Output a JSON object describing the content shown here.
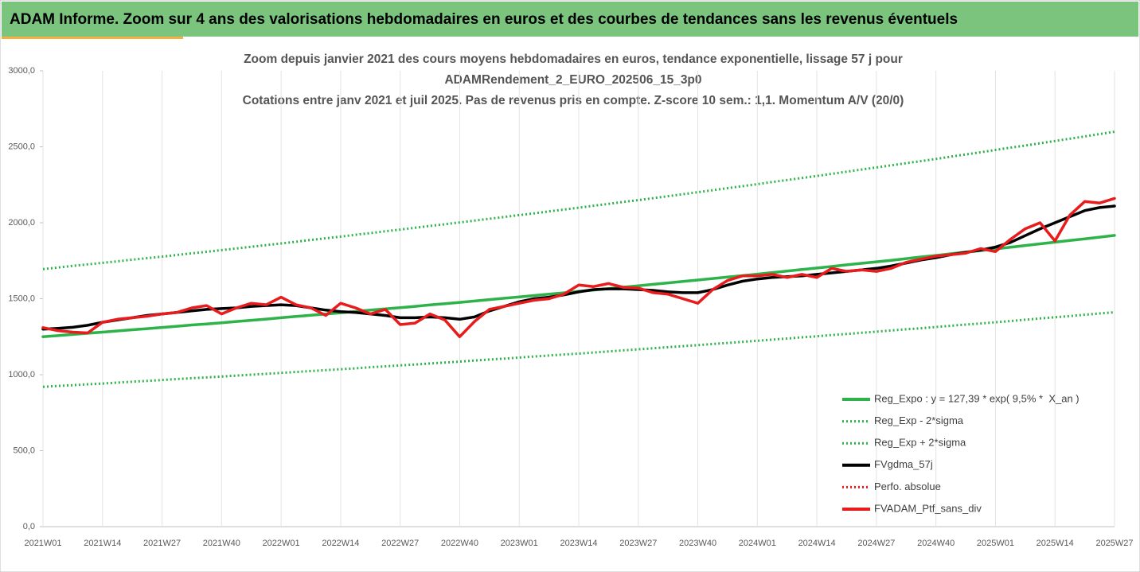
{
  "header": {
    "title": "ADAM Informe. Zoom sur 4 ans des valorisations hebdomadaires en euros et des courbes de tendances sans les revenus éventuels"
  },
  "chart_data": {
    "type": "line",
    "title": [
      "Zoom depuis janvier 2021 des cours moyens hebdomadaires  en euros, tendance exponentielle, lissage 57 j pour",
      "ADAMRendement_2_EURO_202506_15_3p0",
      "Cotations entre janv 2021 et juil 2025. Pas de revenus pris en compte. Z-score 10 sem.: 1,1. Momentum A/V (20/0)"
    ],
    "categories": [
      "2021W01",
      null,
      null,
      null,
      "2021W14",
      null,
      null,
      null,
      "2021W27",
      null,
      null,
      null,
      "2021W40",
      null,
      null,
      null,
      "2022W01",
      null,
      null,
      null,
      "2022W14",
      null,
      null,
      null,
      "2022W27",
      null,
      null,
      null,
      "2022W40",
      null,
      null,
      null,
      "2023W01",
      null,
      null,
      null,
      "2023W14",
      null,
      null,
      null,
      "2023W27",
      null,
      null,
      null,
      "2023W40",
      null,
      null,
      null,
      "2024W01",
      null,
      null,
      null,
      "2024W14",
      null,
      null,
      null,
      "2024W27",
      null,
      null,
      null,
      "2024W40",
      null,
      null,
      null,
      "2025W01",
      null,
      null,
      null,
      "2025W14",
      null,
      null,
      null,
      "2025W27"
    ],
    "ylim": [
      0,
      3000
    ],
    "yticks": [
      {
        "value": 0,
        "label": "0,0"
      },
      {
        "value": 500,
        "label": "500,0"
      },
      {
        "value": 1000,
        "label": "1000,0"
      },
      {
        "value": 1500,
        "label": "1500,0"
      },
      {
        "value": 2000,
        "label": "2000,0"
      },
      {
        "value": 2500,
        "label": "2500,0"
      },
      {
        "value": 3000,
        "label": "3000,0"
      }
    ],
    "xgrid": true,
    "legend": "lower right",
    "series": [
      {
        "name": "Reg_Expo : y = 127,39 * exp( 9,5% *  X_an )",
        "color": "#2db34a",
        "linestyle": "solid",
        "values": [
          1250,
          1257,
          1265,
          1273,
          1280,
          1288,
          1296,
          1303,
          1311,
          1319,
          1327,
          1334,
          1342,
          1350,
          1358,
          1366,
          1375,
          1383,
          1391,
          1399,
          1408,
          1416,
          1425,
          1433,
          1441,
          1450,
          1459,
          1467,
          1476,
          1485,
          1494,
          1503,
          1512,
          1521,
          1530,
          1539,
          1548,
          1557,
          1566,
          1576,
          1585,
          1595,
          1604,
          1614,
          1623,
          1633,
          1643,
          1652,
          1662,
          1672,
          1682,
          1692,
          1702,
          1712,
          1723,
          1733,
          1743,
          1753,
          1764,
          1775,
          1785,
          1796,
          1807,
          1817,
          1828,
          1839,
          1850,
          1861,
          1872,
          1883,
          1894,
          1905,
          1917
        ]
      },
      {
        "name": "Reg_Exp - 2*sigma",
        "color": "#2db34a",
        "linestyle": "dotted",
        "values": [
          920,
          926,
          931,
          937,
          942,
          948,
          954,
          959,
          965,
          971,
          977,
          982,
          988,
          994,
          1000,
          1006,
          1012,
          1018,
          1024,
          1030,
          1036,
          1042,
          1049,
          1055,
          1061,
          1067,
          1074,
          1080,
          1086,
          1093,
          1100,
          1106,
          1113,
          1120,
          1126,
          1133,
          1139,
          1146,
          1153,
          1160,
          1167,
          1174,
          1181,
          1188,
          1195,
          1202,
          1209,
          1216,
          1223,
          1231,
          1238,
          1246,
          1253,
          1261,
          1268,
          1276,
          1283,
          1291,
          1299,
          1306,
          1314,
          1322,
          1330,
          1337,
          1345,
          1353,
          1362,
          1370,
          1378,
          1386,
          1395,
          1403,
          1411
        ]
      },
      {
        "name": "Reg_Exp + 2*sigma",
        "color": "#2db34a",
        "linestyle": "dotted",
        "values": [
          1695,
          1705,
          1716,
          1726,
          1736,
          1746,
          1757,
          1767,
          1777,
          1788,
          1799,
          1809,
          1820,
          1831,
          1842,
          1853,
          1864,
          1875,
          1887,
          1898,
          1909,
          1921,
          1932,
          1944,
          1955,
          1967,
          1979,
          1990,
          2002,
          2014,
          2026,
          2038,
          2050,
          2062,
          2075,
          2087,
          2099,
          2112,
          2124,
          2137,
          2149,
          2162,
          2175,
          2188,
          2201,
          2214,
          2228,
          2241,
          2254,
          2268,
          2281,
          2295,
          2308,
          2322,
          2336,
          2350,
          2364,
          2378,
          2392,
          2406,
          2420,
          2435,
          2450,
          2464,
          2479,
          2494,
          2508,
          2523,
          2538,
          2553,
          2568,
          2584,
          2599
        ]
      },
      {
        "name": "FVgdma_57j",
        "color": "#000000",
        "linestyle": "solid",
        "values": [
          1300,
          1305,
          1312,
          1325,
          1345,
          1360,
          1375,
          1390,
          1400,
          1410,
          1420,
          1430,
          1435,
          1440,
          1450,
          1455,
          1460,
          1455,
          1440,
          1425,
          1415,
          1410,
          1400,
          1390,
          1375,
          1375,
          1380,
          1375,
          1365,
          1380,
          1420,
          1450,
          1480,
          1500,
          1510,
          1525,
          1545,
          1560,
          1565,
          1565,
          1560,
          1555,
          1545,
          1540,
          1540,
          1560,
          1590,
          1615,
          1630,
          1640,
          1645,
          1650,
          1660,
          1670,
          1680,
          1690,
          1700,
          1715,
          1735,
          1755,
          1770,
          1790,
          1805,
          1820,
          1840,
          1870,
          1915,
          1960,
          2000,
          2040,
          2080,
          2100,
          2110
        ]
      },
      {
        "name": "Perfo. absolue",
        "color": "#e81c1c",
        "linestyle": "dotted",
        "values": [
          1310,
          1290,
          1280,
          1275,
          1345,
          1365,
          1375,
          1385,
          1400,
          1410,
          1440,
          1455,
          1400,
          1440,
          1470,
          1460,
          1510,
          1460,
          1440,
          1390,
          1470,
          1440,
          1400,
          1430,
          1330,
          1340,
          1400,
          1360,
          1250,
          1350,
          1430,
          1450,
          1470,
          1490,
          1500,
          1530,
          1590,
          1580,
          1600,
          1575,
          1570,
          1540,
          1530,
          1500,
          1470,
          1560,
          1620,
          1650,
          1650,
          1660,
          1640,
          1660,
          1640,
          1700,
          1680,
          1690,
          1680,
          1700,
          1740,
          1760,
          1780,
          1790,
          1800,
          1830,
          1810,
          1890,
          1960,
          2000,
          1880,
          2050,
          2140,
          2130,
          2160
        ]
      },
      {
        "name": "FVADAM_Ptf_sans_div",
        "color": "#e81c1c",
        "linestyle": "solid",
        "values": [
          1310,
          1290,
          1280,
          1275,
          1345,
          1365,
          1375,
          1385,
          1400,
          1410,
          1440,
          1455,
          1400,
          1440,
          1470,
          1460,
          1510,
          1460,
          1440,
          1390,
          1470,
          1440,
          1400,
          1430,
          1330,
          1340,
          1400,
          1360,
          1250,
          1350,
          1430,
          1450,
          1470,
          1490,
          1500,
          1530,
          1590,
          1580,
          1600,
          1575,
          1570,
          1540,
          1530,
          1500,
          1470,
          1560,
          1620,
          1650,
          1650,
          1660,
          1640,
          1660,
          1640,
          1700,
          1680,
          1690,
          1680,
          1700,
          1740,
          1760,
          1780,
          1790,
          1800,
          1830,
          1810,
          1890,
          1960,
          2000,
          1880,
          2050,
          2140,
          2130,
          2160
        ]
      }
    ]
  }
}
